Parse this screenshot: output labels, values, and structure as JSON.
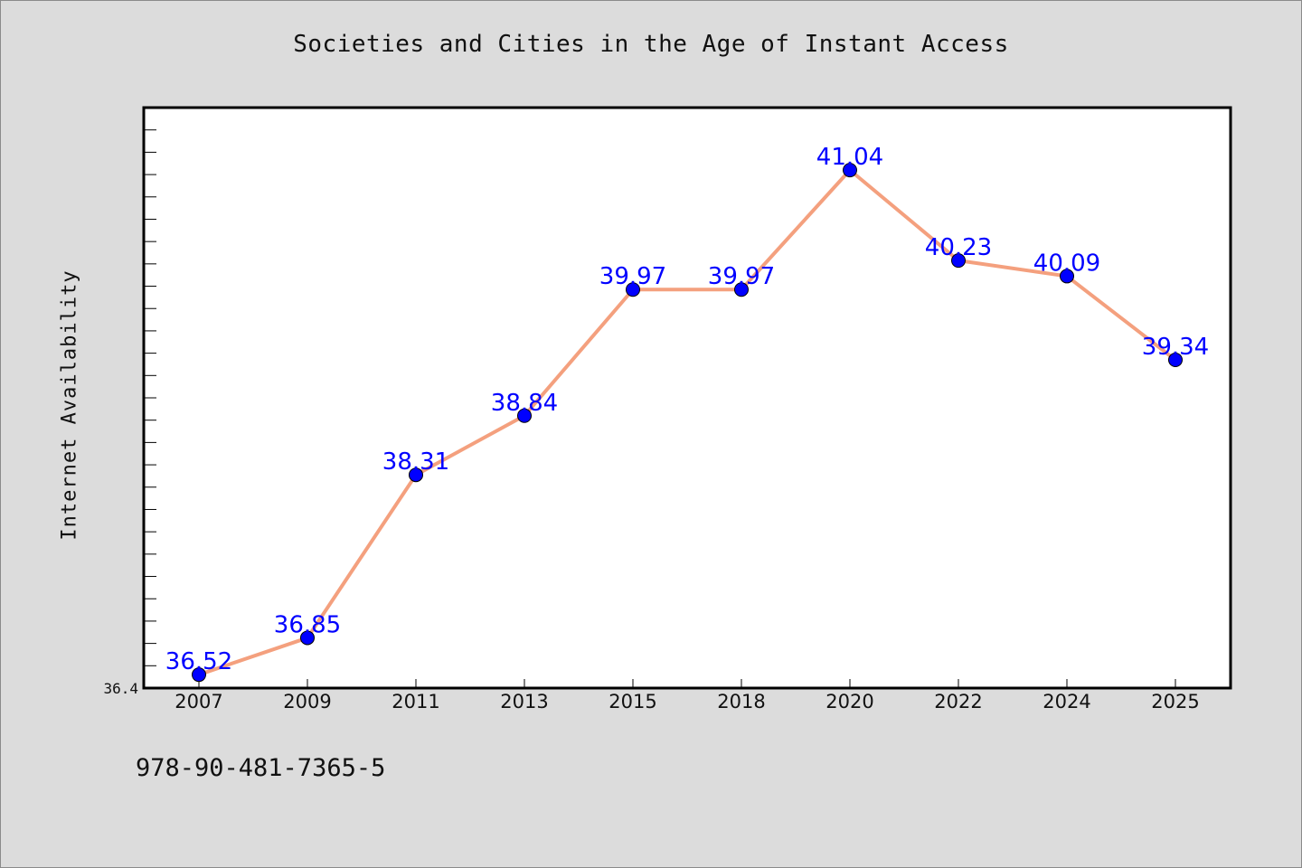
{
  "chart_data": {
    "type": "line",
    "title": "Societies and Cities in the Age of Instant Access",
    "xlabel": "",
    "ylabel": "Internet Availability",
    "categories": [
      "2007",
      "2009",
      "2011",
      "2013",
      "2015",
      "2018",
      "2020",
      "2022",
      "2024",
      "2025"
    ],
    "series": [
      {
        "values": [
          36.52,
          36.85,
          38.31,
          38.84,
          39.97,
          39.97,
          41.04,
          40.23,
          40.09,
          39.34
        ],
        "data_labels": [
          "36.52",
          "36.85",
          "38.31",
          "38.84",
          "39.97",
          "39.97",
          "41.04",
          "40.23",
          "40.09",
          "39.34"
        ]
      }
    ],
    "ylim": [
      36.4,
      41.6
    ],
    "y_tick_labels": [
      "36.4"
    ],
    "y_minor_step": 0.2,
    "grid": false,
    "legend": "none",
    "colors": {
      "line": "#f4a07e",
      "marker": "#0000ff",
      "data_label": "#0000ff",
      "plot_background": "#ffffff",
      "page_background": "#dcdcdc"
    }
  },
  "footer_note": "978-90-481-7365-5"
}
